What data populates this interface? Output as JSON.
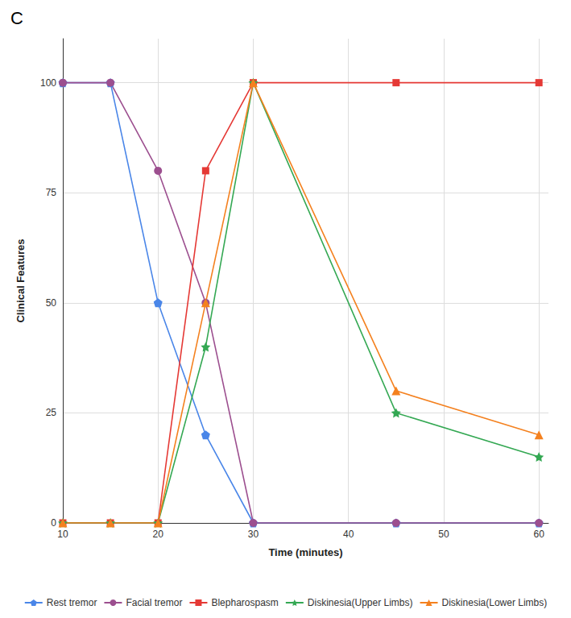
{
  "chart_data": {
    "type": "line",
    "panel": "C",
    "x_label": "Time (minutes)",
    "y_label": "Clinical Features",
    "x": [
      10,
      15,
      20,
      25,
      30,
      45,
      60
    ],
    "xlim": [
      10,
      61
    ],
    "xticks": [
      10,
      20,
      30,
      40,
      50,
      60
    ],
    "ylim": [
      0,
      110
    ],
    "yticks": [
      0,
      25,
      50,
      75,
      100
    ],
    "grid": true,
    "legend": "bottom",
    "series": [
      {
        "name": "Rest tremor",
        "color": "#4a86e8",
        "marker": "pentagon",
        "values": [
          100,
          100,
          50,
          20,
          0,
          0,
          0
        ]
      },
      {
        "name": "Facial tremor",
        "color": "#9c4f8f",
        "marker": "circle",
        "values": [
          100,
          100,
          80,
          50,
          0,
          0,
          0
        ]
      },
      {
        "name": "Blepharospasm",
        "color": "#e53935",
        "marker": "square",
        "values": [
          0,
          0,
          0,
          80,
          100,
          100,
          100
        ]
      },
      {
        "name": "Diskinesia(Upper Limbs)",
        "color": "#34a853",
        "marker": "star",
        "values": [
          0,
          0,
          0,
          40,
          100,
          25,
          15
        ]
      },
      {
        "name": "Diskinesia(Lower Limbs)",
        "color": "#f4811f",
        "marker": "triangle",
        "values": [
          0,
          0,
          0,
          50,
          100,
          30,
          20
        ]
      }
    ]
  }
}
